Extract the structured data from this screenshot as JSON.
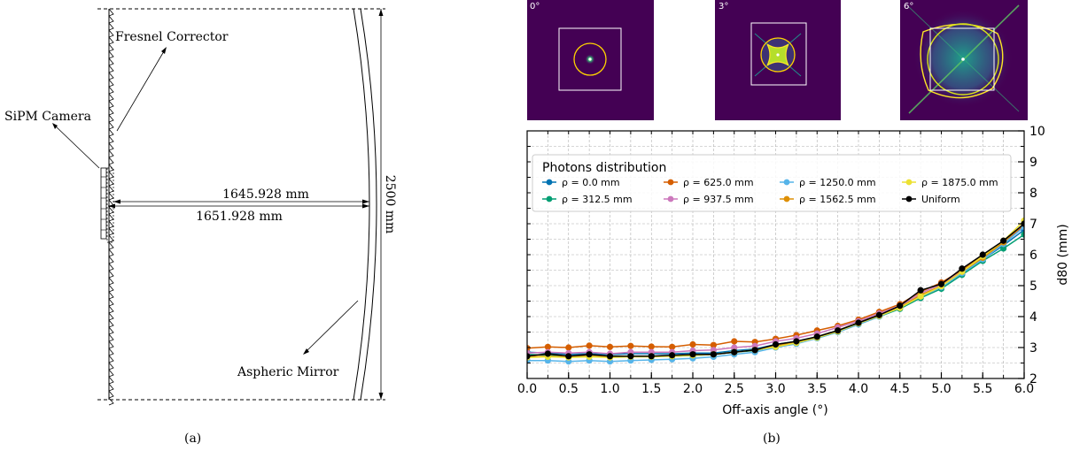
{
  "diagram": {
    "labels": {
      "fresnel": "Fresnel Corrector",
      "camera": "SiPM Camera",
      "mirror": "Aspheric Mirror",
      "dim_upper": "1645.928 mm",
      "dim_lower": "1651.928 mm",
      "dim_height": "2500 mm"
    },
    "caption": "(a)"
  },
  "spots": [
    {
      "label": "0°",
      "angle": 0
    },
    {
      "label": "3°",
      "angle": 3
    },
    {
      "label": "6°",
      "angle": 6
    }
  ],
  "chart_data": {
    "type": "line",
    "xlabel": "Off-axis angle (°)",
    "ylabel": "d80 (mm)",
    "xlim": [
      0,
      6
    ],
    "ylim": [
      2,
      10
    ],
    "xticks": [
      "0.0",
      "0.5",
      "1.0",
      "1.5",
      "2.0",
      "2.5",
      "3.0",
      "3.5",
      "4.0",
      "4.5",
      "5.0",
      "5.5",
      "6.0"
    ],
    "yticks": [
      "2",
      "3",
      "4",
      "5",
      "6",
      "7",
      "8",
      "9",
      "10"
    ],
    "grid": true,
    "legend_title": "Photons distribution",
    "legend_position": "top",
    "x": [
      0,
      0.25,
      0.5,
      0.75,
      1,
      1.25,
      1.5,
      1.75,
      2,
      2.25,
      2.5,
      2.75,
      3,
      3.25,
      3.5,
      3.75,
      4,
      4.25,
      4.5,
      4.75,
      5,
      5.25,
      5.5,
      5.75,
      6
    ],
    "series": [
      {
        "name": "ρ = 0.0 mm",
        "color": "#0173b2",
        "values": [
          2.85,
          2.82,
          2.78,
          2.8,
          2.78,
          2.8,
          2.8,
          2.8,
          2.82,
          2.82,
          2.9,
          2.95,
          3.1,
          3.2,
          3.35,
          3.55,
          3.8,
          4.05,
          4.3,
          4.65,
          4.95,
          5.4,
          5.85,
          6.3,
          6.8
        ]
      },
      {
        "name": "ρ = 312.5 mm",
        "color": "#029e73",
        "values": [
          2.78,
          2.75,
          2.72,
          2.72,
          2.7,
          2.72,
          2.72,
          2.72,
          2.74,
          2.78,
          2.85,
          2.9,
          3.05,
          3.15,
          3.3,
          3.5,
          3.75,
          4.0,
          4.25,
          4.6,
          4.9,
          5.35,
          5.8,
          6.2,
          6.65
        ]
      },
      {
        "name": "ρ = 625.0 mm",
        "color": "#d55e00",
        "values": [
          2.98,
          3.02,
          3.0,
          3.06,
          3.02,
          3.05,
          3.03,
          3.02,
          3.1,
          3.08,
          3.2,
          3.18,
          3.28,
          3.4,
          3.55,
          3.7,
          3.9,
          4.15,
          4.4,
          4.8,
          5.1,
          5.5,
          5.95,
          6.4,
          6.95
        ]
      },
      {
        "name": "ρ = 937.5 mm",
        "color": "#cc78bc",
        "values": [
          2.82,
          2.85,
          2.82,
          2.85,
          2.8,
          2.85,
          2.85,
          2.85,
          2.9,
          2.92,
          3.0,
          3.05,
          3.2,
          3.3,
          3.45,
          3.65,
          3.85,
          4.1,
          4.35,
          4.75,
          5.05,
          5.45,
          5.9,
          6.35,
          6.9
        ]
      },
      {
        "name": "ρ = 1250.0 mm",
        "color": "#56b4e9",
        "values": [
          2.58,
          2.58,
          2.55,
          2.58,
          2.55,
          2.58,
          2.6,
          2.62,
          2.65,
          2.7,
          2.78,
          2.85,
          3.0,
          3.12,
          3.3,
          3.5,
          3.75,
          4.0,
          4.3,
          4.65,
          4.95,
          5.4,
          5.85,
          6.35,
          6.9
        ]
      },
      {
        "name": "ρ = 1562.5 mm",
        "color": "#de8f05",
        "values": [
          2.7,
          2.72,
          2.7,
          2.72,
          2.7,
          2.72,
          2.72,
          2.72,
          2.75,
          2.78,
          2.85,
          2.92,
          3.05,
          3.18,
          3.35,
          3.55,
          3.8,
          4.05,
          4.3,
          4.7,
          5.0,
          5.45,
          5.9,
          6.4,
          7.0
        ]
      },
      {
        "name": "ρ = 1875.0 mm",
        "color": "#ece133",
        "values": [
          2.68,
          2.7,
          2.68,
          2.7,
          2.68,
          2.7,
          2.7,
          2.72,
          2.75,
          2.78,
          2.85,
          2.92,
          3.02,
          3.15,
          3.32,
          3.52,
          3.78,
          4.02,
          4.28,
          4.65,
          4.98,
          5.45,
          5.95,
          6.45,
          7.1
        ]
      },
      {
        "name": "Uniform",
        "color": "#000000",
        "values": [
          2.72,
          2.8,
          2.72,
          2.78,
          2.72,
          2.72,
          2.72,
          2.75,
          2.78,
          2.78,
          2.85,
          2.92,
          3.1,
          3.2,
          3.35,
          3.55,
          3.8,
          4.05,
          4.35,
          4.85,
          5.05,
          5.55,
          6.0,
          6.45,
          7.0
        ]
      }
    ]
  },
  "caption_b": "(b)"
}
